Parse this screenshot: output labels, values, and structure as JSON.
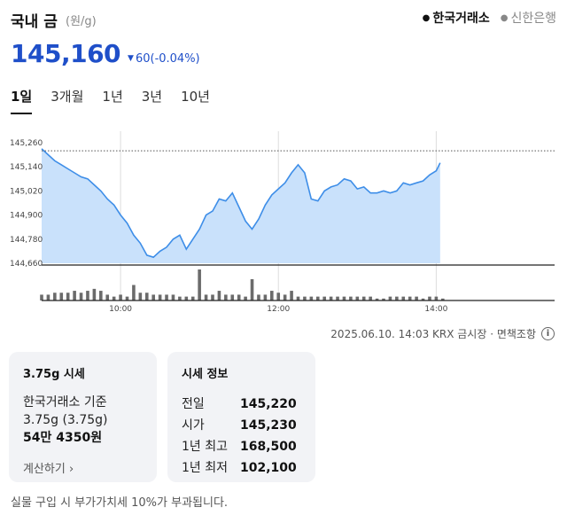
{
  "header": {
    "title": "국내 금",
    "unit": "(원/g)",
    "sources": [
      {
        "label": "한국거래소",
        "active": true
      },
      {
        "label": "신한은행",
        "active": false
      }
    ]
  },
  "price": {
    "value": "145,160",
    "change": "60",
    "change_pct": "(-0.04%)",
    "direction": "down",
    "color": "#1f4fc9"
  },
  "tabs": [
    {
      "label": "1일",
      "active": true
    },
    {
      "label": "3개월",
      "active": false
    },
    {
      "label": "1년",
      "active": false
    },
    {
      "label": "3년",
      "active": false
    },
    {
      "label": "10년",
      "active": false
    }
  ],
  "chart_data": {
    "type": "area",
    "y_ticks": [
      "145,260",
      "145,140",
      "145,020",
      "144,900",
      "144,780",
      "144,660"
    ],
    "y_tick_values": [
      145260,
      145140,
      145020,
      144900,
      144780,
      144660
    ],
    "ylim": [
      144660,
      145260
    ],
    "x_ticks": [
      "10:00",
      "12:00",
      "14:00"
    ],
    "x_tick_minutes": [
      60,
      180,
      300
    ],
    "xlim": [
      0,
      390
    ],
    "reference_line": {
      "value": 145220,
      "style": "dotted"
    },
    "fill_color": "#c9e1fb",
    "line_color": "#3e8ee8",
    "series": [
      {
        "x": [
          0,
          5,
          10,
          15,
          20,
          25,
          30,
          35,
          40,
          45,
          50,
          55,
          60,
          65,
          70,
          75,
          80,
          85,
          90,
          95,
          100,
          105,
          110,
          115,
          120,
          125,
          130,
          135,
          140,
          145,
          150,
          155,
          160,
          165,
          170,
          175,
          180,
          185,
          190,
          195,
          200,
          205,
          210,
          215,
          220,
          225,
          230,
          235,
          240,
          245,
          250,
          255,
          260,
          265,
          270,
          275,
          280,
          285,
          290,
          295,
          300,
          303
        ],
        "y": [
          145230,
          145200,
          145170,
          145150,
          145130,
          145110,
          145090,
          145080,
          145050,
          145020,
          144980,
          144950,
          144900,
          144860,
          144800,
          144760,
          144700,
          144690,
          144720,
          144740,
          144780,
          144800,
          144730,
          144780,
          144830,
          144900,
          144920,
          144980,
          144970,
          145010,
          144940,
          144870,
          144830,
          144880,
          144950,
          145000,
          145030,
          145060,
          145110,
          145150,
          145110,
          144980,
          144970,
          145020,
          145040,
          145050,
          145080,
          145070,
          145030,
          145040,
          145010,
          145010,
          145020,
          145010,
          145020,
          145060,
          145050,
          145060,
          145070,
          145100,
          145120,
          145160
        ]
      }
    ],
    "volume": {
      "x": [
        0,
        5,
        10,
        15,
        20,
        25,
        30,
        35,
        40,
        45,
        50,
        55,
        60,
        65,
        70,
        75,
        80,
        85,
        90,
        95,
        100,
        105,
        110,
        115,
        120,
        125,
        130,
        135,
        140,
        145,
        150,
        155,
        160,
        165,
        170,
        175,
        180,
        185,
        190,
        195,
        200,
        205,
        210,
        215,
        220,
        225,
        230,
        235,
        240,
        245,
        250,
        255,
        260,
        265,
        270,
        275,
        280,
        285,
        290,
        295,
        300,
        305
      ],
      "values": [
        3,
        3,
        4,
        4,
        4,
        5,
        4,
        5,
        6,
        5,
        3,
        2,
        3,
        2,
        8,
        4,
        4,
        3,
        3,
        3,
        3,
        2,
        2,
        2,
        16,
        3,
        3,
        5,
        3,
        3,
        3,
        2,
        11,
        3,
        3,
        5,
        4,
        3,
        5,
        2,
        2,
        2,
        2,
        2,
        2,
        2,
        2,
        2,
        2,
        2,
        2,
        1,
        1,
        2,
        2,
        2,
        2,
        2,
        1,
        2,
        2,
        1
      ]
    }
  },
  "meta": {
    "text": "2025.06.10. 14:03 KRX 금시장 · 면책조항",
    "info_glyph": "i"
  },
  "card_weight": {
    "title": "3.75g 시세",
    "line1": "한국거래소 기준",
    "line2": "3.75g (3.75g)",
    "price": "54만 4350원",
    "calc_label": "계산하기",
    "calc_arrow": "›"
  },
  "card_info": {
    "title": "시세 정보",
    "rows": [
      {
        "label": "전일",
        "value": "145,220"
      },
      {
        "label": "시가",
        "value": "145,230"
      },
      {
        "label": "1년 최고",
        "value": "168,500"
      },
      {
        "label": "1년 최저",
        "value": "102,100"
      }
    ]
  },
  "footnote": "실물 구입 시 부가가치세 10%가 부과됩니다."
}
